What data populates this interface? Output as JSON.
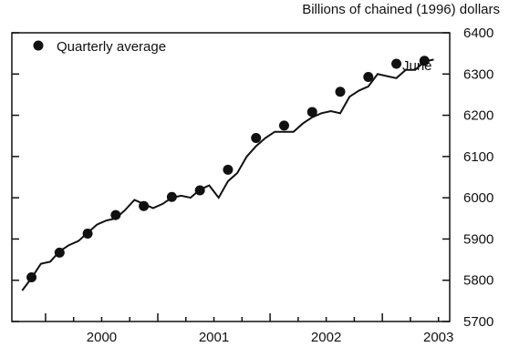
{
  "chart_data": {
    "type": "line",
    "ylabel": "Billions of chained (1996) dollars",
    "legend": "Quarterly average",
    "annotation": "June",
    "ylim": [
      5700,
      6400
    ],
    "yticks": [
      5700,
      5800,
      5900,
      6000,
      6100,
      6200,
      6300,
      6400
    ],
    "xlim": [
      1999.7,
      2003.6
    ],
    "xticks": [
      {
        "label": "2000",
        "value": 2000.5
      },
      {
        "label": "2001",
        "value": 2001.5
      },
      {
        "label": "2002",
        "value": 2002.5
      },
      {
        "label": "2003",
        "value": 2003.5
      }
    ],
    "series": [
      {
        "kind": "monthly line",
        "x": [
          1999.792,
          1999.875,
          1999.958,
          2000.042,
          2000.125,
          2000.208,
          2000.292,
          2000.375,
          2000.458,
          2000.542,
          2000.625,
          2000.708,
          2000.792,
          2000.875,
          2000.958,
          2001.042,
          2001.125,
          2001.208,
          2001.292,
          2001.375,
          2001.458,
          2001.542,
          2001.625,
          2001.708,
          2001.792,
          2001.875,
          2001.958,
          2002.042,
          2002.125,
          2002.208,
          2002.292,
          2002.375,
          2002.458,
          2002.542,
          2002.625,
          2002.708,
          2002.792,
          2002.875,
          2002.958,
          2003.042,
          2003.125,
          2003.208,
          2003.292,
          2003.375,
          2003.458
        ],
        "values": [
          5775,
          5805,
          5840,
          5845,
          5870,
          5885,
          5895,
          5915,
          5935,
          5945,
          5950,
          5970,
          5995,
          5985,
          5975,
          5985,
          6000,
          6005,
          6000,
          6020,
          6030,
          6000,
          6040,
          6060,
          6100,
          6125,
          6145,
          6160,
          6160,
          6160,
          6180,
          6195,
          6205,
          6210,
          6205,
          6245,
          6260,
          6270,
          6300,
          6295,
          6290,
          6310,
          6310,
          6330,
          6335
        ]
      },
      {
        "kind": "quarterly average",
        "x": [
          1999.875,
          2000.125,
          2000.375,
          2000.625,
          2000.875,
          2001.125,
          2001.375,
          2001.625,
          2001.875,
          2002.125,
          2002.375,
          2002.625,
          2002.875,
          2003.125,
          2003.375
        ],
        "values": [
          5807,
          5867,
          5913,
          5958,
          5980,
          6002,
          6018,
          6068,
          6145,
          6175,
          6208,
          6257,
          6293,
          6325,
          6332
        ]
      }
    ]
  }
}
